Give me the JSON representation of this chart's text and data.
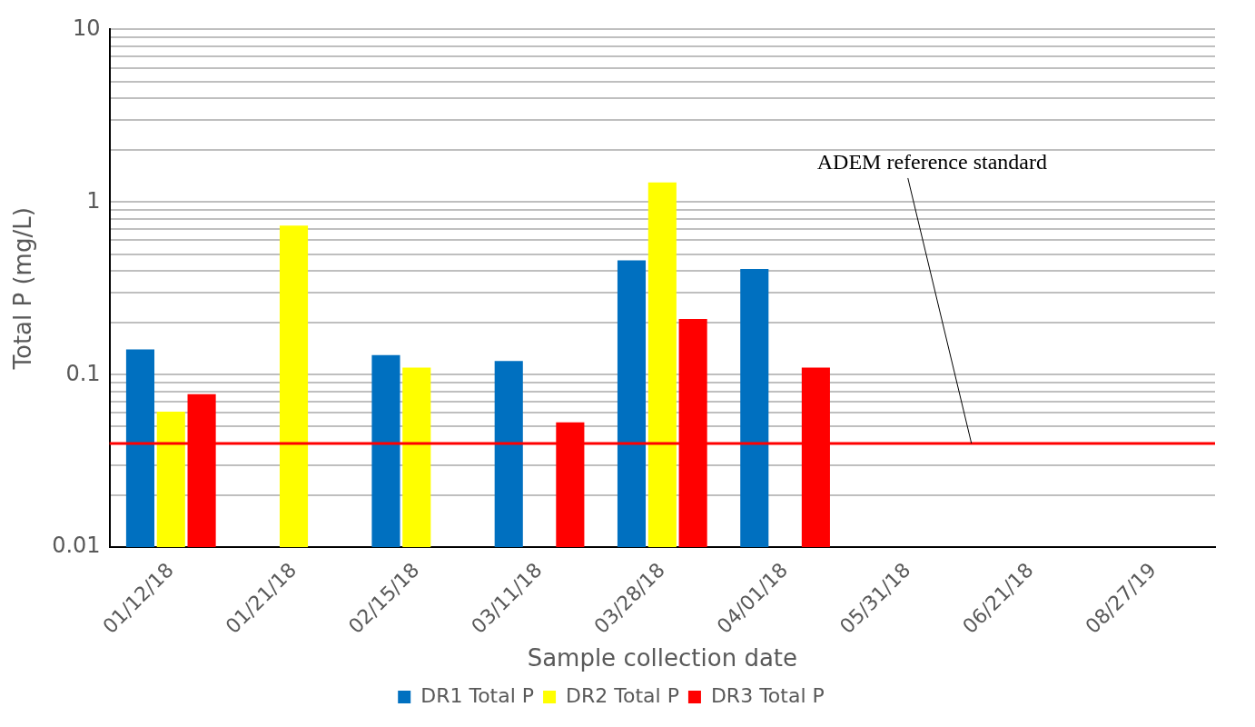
{
  "chart_data": {
    "type": "bar",
    "xlabel": "Sample collection date",
    "ylabel": "Total P (mg/L)",
    "categories": [
      "01/12/18",
      "01/21/18",
      "02/15/18",
      "03/11/18",
      "03/28/18",
      "04/01/18",
      "05/31/18",
      "06/21/18",
      "08/27/19"
    ],
    "series": [
      {
        "name": "DR1 Total P",
        "color": "#0070c0",
        "values": [
          0.14,
          null,
          0.13,
          0.12,
          0.46,
          0.41,
          null,
          null,
          null
        ]
      },
      {
        "name": "DR2 Total P",
        "color": "#ffff00",
        "values": [
          0.061,
          0.73,
          0.11,
          null,
          1.3,
          null,
          null,
          null,
          null
        ]
      },
      {
        "name": "DR3 Total P",
        "color": "#ff0000",
        "values": [
          0.077,
          null,
          null,
          0.053,
          0.21,
          0.11,
          null,
          null,
          null
        ]
      }
    ],
    "log": "y",
    "ylim": [
      0.01,
      10
    ],
    "yticks": [
      0.01,
      {
        "value": 0.02,
        "label": null
      },
      {
        "value": 0.03,
        "label": null
      },
      {
        "value": 0.04,
        "label": null
      },
      {
        "value": 0.05,
        "label": null
      },
      {
        "value": 0.06,
        "label": null
      },
      {
        "value": 0.07,
        "label": null
      },
      {
        "value": 0.08,
        "label": null
      },
      {
        "value": 0.09,
        "label": null
      },
      0.1,
      {
        "value": 0.2,
        "label": null
      },
      {
        "value": 0.3,
        "label": null
      },
      {
        "value": 0.4,
        "label": null
      },
      {
        "value": 0.5,
        "label": null
      },
      {
        "value": 0.6,
        "label": null
      },
      {
        "value": 0.7,
        "label": null
      },
      {
        "value": 0.8,
        "label": null
      },
      {
        "value": 0.9,
        "label": null
      },
      1,
      {
        "value": 2,
        "label": null
      },
      {
        "value": 3,
        "label": null
      },
      {
        "value": 4,
        "label": null
      },
      {
        "value": 5,
        "label": null
      },
      {
        "value": 6,
        "label": null
      },
      {
        "value": 7,
        "label": null
      },
      {
        "value": 8,
        "label": null
      },
      {
        "value": 9,
        "label": null
      },
      10
    ],
    "grid": "y",
    "legend": "bottom",
    "ref_lines": [
      {
        "axis": "y",
        "value": 0.04,
        "label": "ADEM reference standard",
        "color": "#ff0000"
      }
    ]
  }
}
